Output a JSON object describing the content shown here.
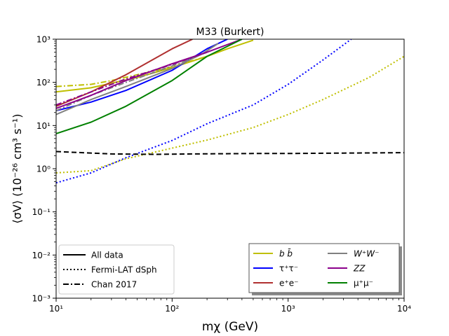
{
  "chart_data": {
    "type": "line",
    "title": "M33 (Burkert)",
    "xlabel": "mχ (GeV)",
    "ylabel": "⟨σV⟩ (10⁻²⁶ cm³ s⁻¹)",
    "xscale": "log",
    "yscale": "log",
    "xlim": [
      10,
      10000
    ],
    "ylim": [
      0.001,
      1000
    ],
    "x_tick_labels": [
      "10¹",
      "10²",
      "10³",
      "10⁴"
    ],
    "y_tick_labels": [
      "10⁻³",
      "10⁻²",
      "10⁻¹",
      "10⁰",
      "10¹",
      "10²",
      "10³"
    ],
    "x_tick_values": [
      10,
      100,
      1000,
      10000
    ],
    "y_tick_values": [
      0.001,
      0.01,
      0.1,
      1,
      10,
      100,
      1000
    ],
    "style_legend": {
      "position": "lower-left",
      "entries": [
        {
          "label": "All data",
          "style": "solid"
        },
        {
          "label": "Fermi-LAT dSph",
          "style": "dotted"
        },
        {
          "label": "Chan 2017",
          "style": "dashdot"
        }
      ]
    },
    "channel_legend": {
      "position": "lower-right",
      "entries": [
        {
          "label": "b b̄",
          "color": "#bfbf00"
        },
        {
          "label": "W⁺W⁻",
          "color": "#808080"
        },
        {
          "label": "τ⁺τ⁻",
          "color": "#0000ff"
        },
        {
          "label": "ZZ",
          "color": "#8b008b"
        },
        {
          "label": "e⁺e⁻",
          "color": "#b03030"
        },
        {
          "label": "μ⁺μ⁻",
          "color": "#008000"
        }
      ]
    },
    "series": [
      {
        "name": "bb all data",
        "style": "solid",
        "color": "#bfbf00",
        "x": [
          10,
          20,
          50,
          100,
          200,
          300,
          500
        ],
        "y": [
          60,
          75,
          130,
          220,
          400,
          600,
          950
        ]
      },
      {
        "name": "bb Fermi-LAT dSph",
        "style": "dotted",
        "color": "#bfbf00",
        "x": [
          10,
          20,
          40,
          100,
          200,
          500,
          1000,
          2000,
          5000,
          10000
        ],
        "y": [
          0.8,
          0.9,
          1.7,
          3,
          4.6,
          9,
          18,
          40,
          130,
          400
        ]
      },
      {
        "name": "bb Chan 2017",
        "style": "dashdot",
        "color": "#bfbf00",
        "x": [
          10,
          20,
          30,
          50,
          100,
          200
        ],
        "y": [
          80,
          90,
          110,
          150,
          230,
          400
        ]
      },
      {
        "name": "tau all data",
        "style": "solid",
        "color": "#0000ff",
        "x": [
          10,
          20,
          40,
          100,
          200,
          300
        ],
        "y": [
          22,
          35,
          65,
          190,
          600,
          1000
        ]
      },
      {
        "name": "tau Fermi-LAT dSph",
        "style": "dotted",
        "color": "#0000ff",
        "x": [
          10,
          20,
          40,
          100,
          200,
          500,
          1000,
          2000,
          3500
        ],
        "y": [
          0.47,
          0.8,
          1.8,
          4.5,
          11,
          30,
          90,
          330,
          1000
        ]
      },
      {
        "name": "ee all data",
        "style": "solid",
        "color": "#b03030",
        "x": [
          10,
          20,
          40,
          100,
          150
        ],
        "y": [
          28,
          60,
          150,
          600,
          1000
        ]
      },
      {
        "name": "WW all data",
        "style": "solid",
        "color": "#808080",
        "x": [
          10,
          20,
          40,
          100,
          180,
          250
        ],
        "y": [
          18,
          40,
          80,
          210,
          450,
          800
        ]
      },
      {
        "name": "WW Chan 2017",
        "style": "dashdot",
        "color": "#808080",
        "x": [
          10,
          20,
          40,
          100,
          200
        ],
        "y": [
          22,
          50,
          100,
          240,
          500
        ]
      },
      {
        "name": "ZZ all data",
        "style": "solid",
        "color": "#8b008b",
        "x": [
          10,
          20,
          40,
          100,
          200,
          400
        ],
        "y": [
          25,
          50,
          110,
          270,
          500,
          1000
        ]
      },
      {
        "name": "ZZ Chan 2017",
        "style": "dashdot",
        "color": "#8b008b",
        "x": [
          10,
          20,
          40,
          100,
          200
        ],
        "y": [
          30,
          60,
          120,
          260,
          500
        ]
      },
      {
        "name": "mumu all data",
        "style": "solid",
        "color": "#008000",
        "x": [
          10,
          20,
          40,
          100,
          200,
          400
        ],
        "y": [
          6.5,
          12,
          28,
          110,
          400,
          1000
        ]
      },
      {
        "name": "Chan 2017 reference",
        "style": "dashed",
        "color": "#000000",
        "x": [
          10,
          30,
          70,
          150,
          500,
          1000,
          3000,
          10000
        ],
        "y": [
          2.5,
          2.2,
          2.15,
          2.2,
          2.25,
          2.25,
          2.3,
          2.35
        ]
      }
    ]
  }
}
